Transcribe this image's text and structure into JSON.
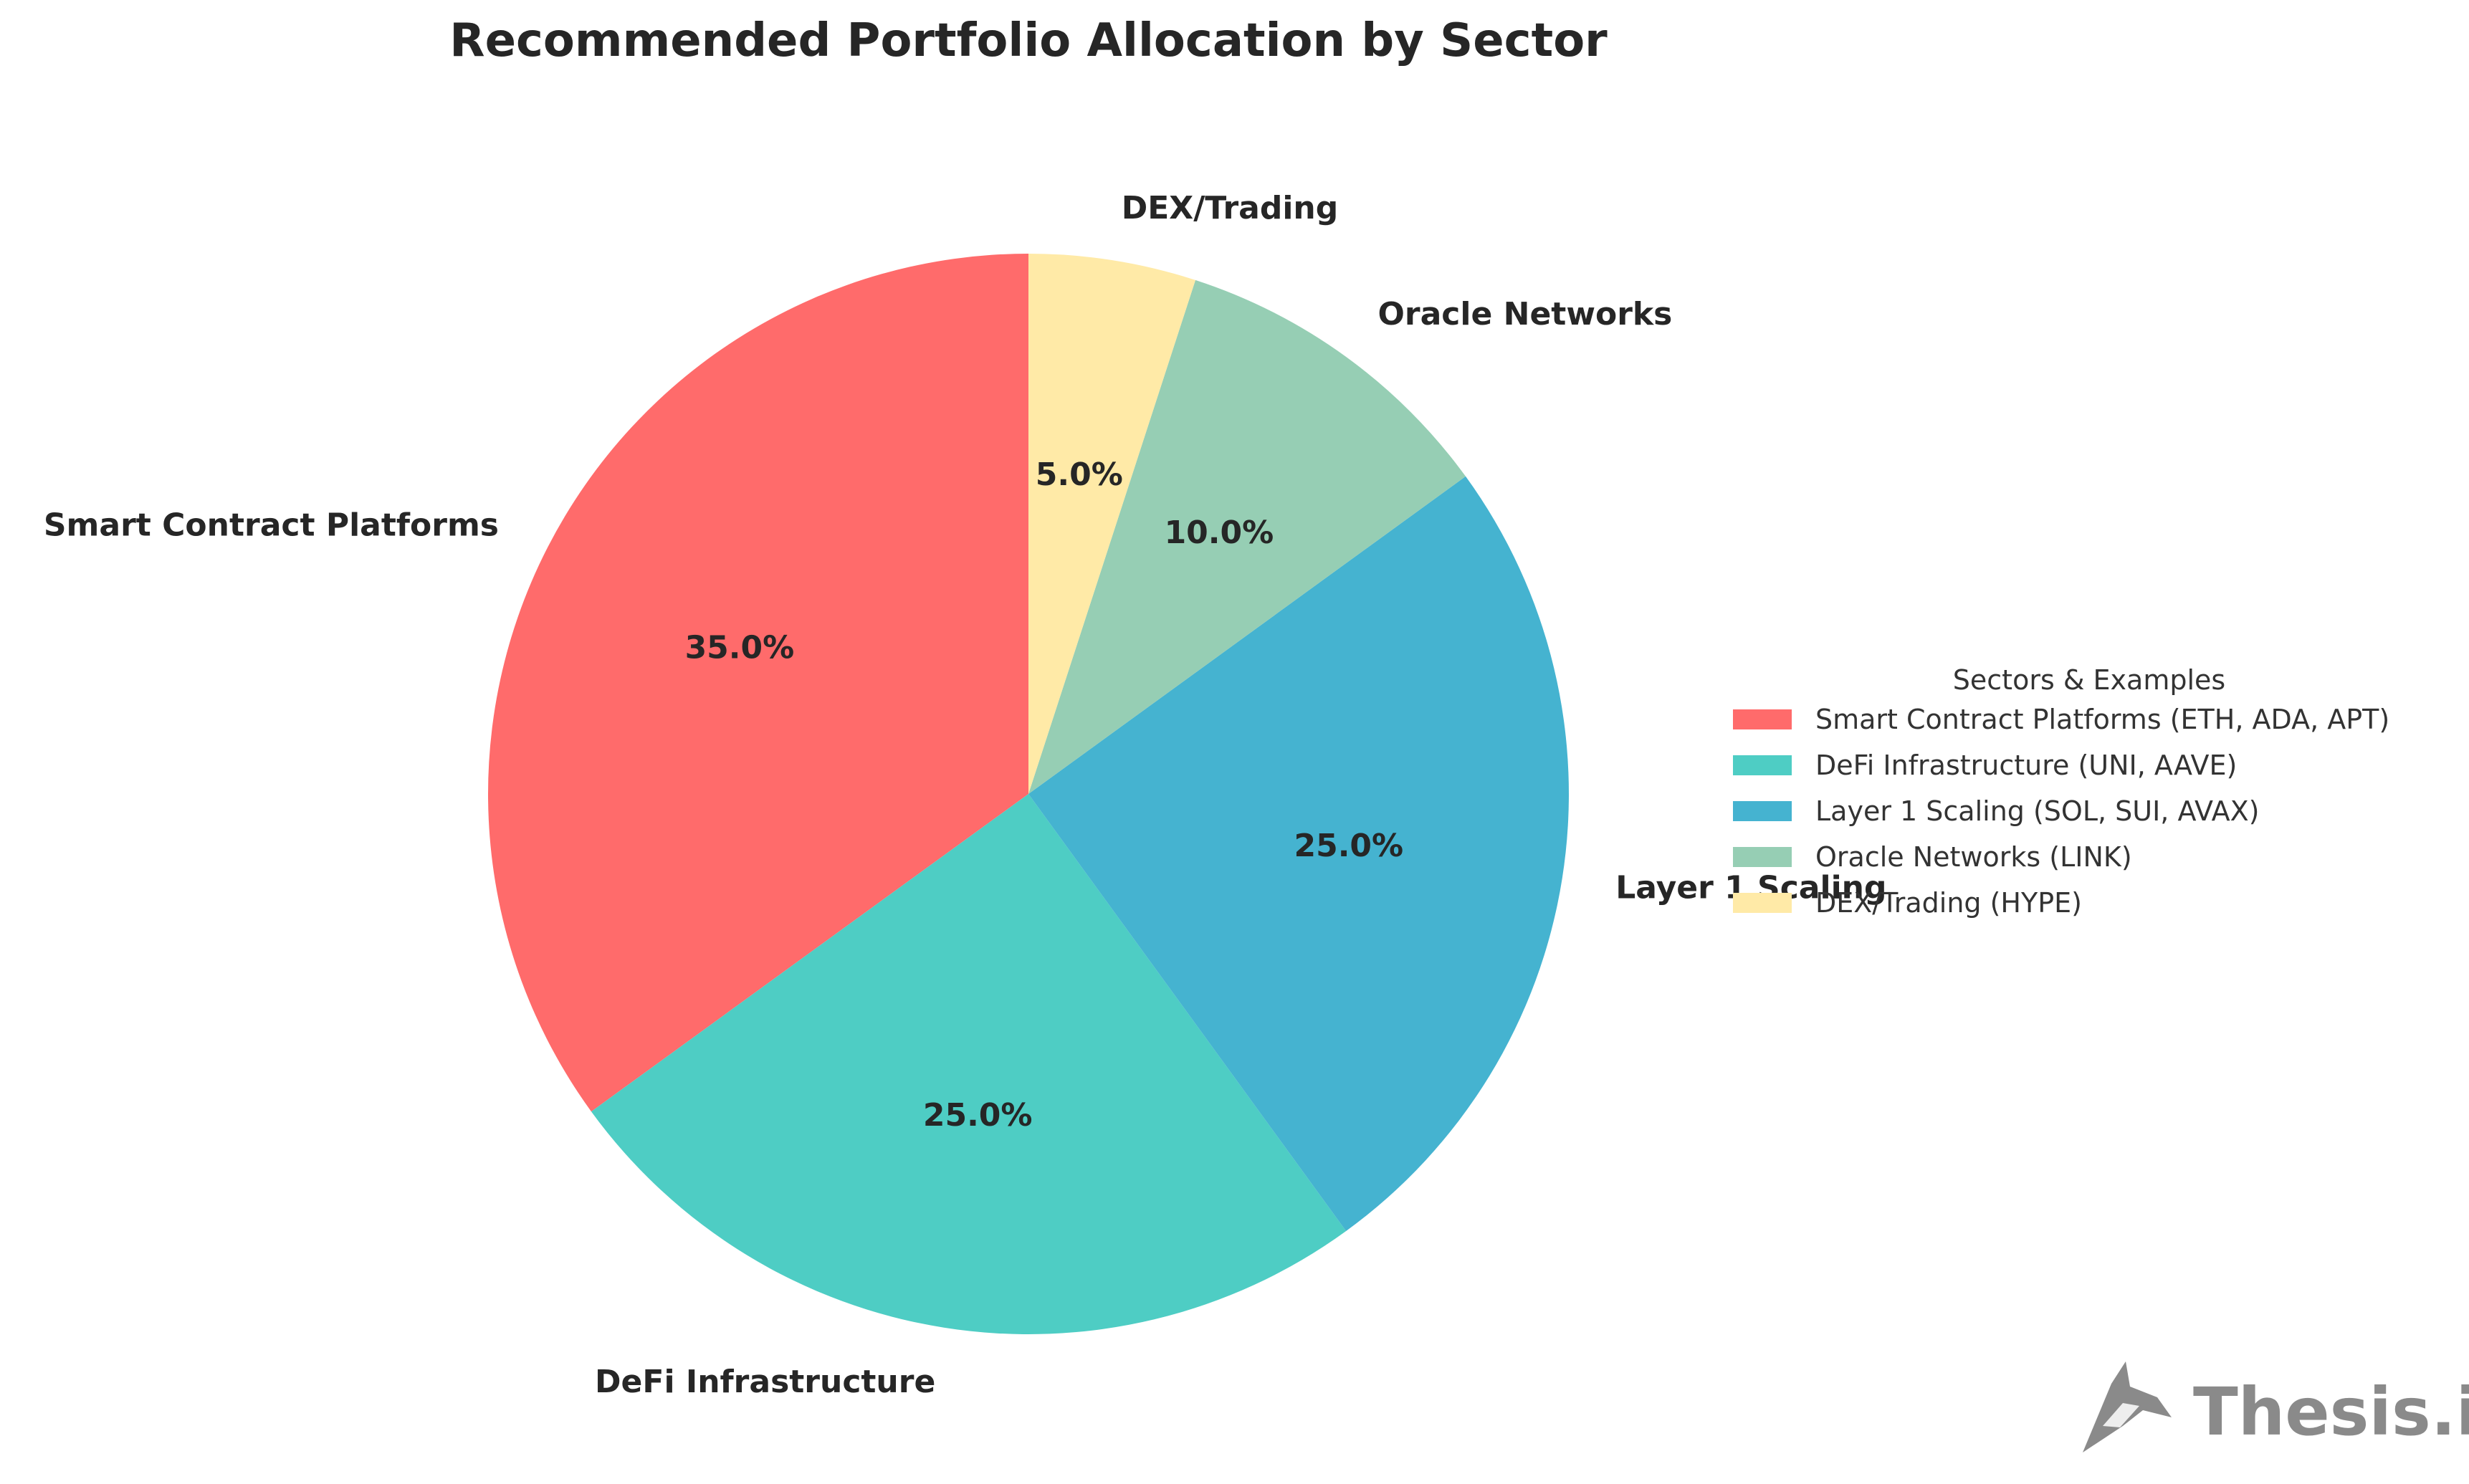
{
  "chart_data": {
    "type": "pie",
    "title": "Recommended Portfolio Allocation by Sector",
    "categories": [
      "Smart Contract Platforms",
      "DeFi Infrastructure",
      "Layer 1 Scaling",
      "Oracle Networks",
      "DEX/Trading"
    ],
    "values": [
      35.0,
      25.0,
      25.0,
      10.0,
      5.0
    ],
    "value_labels": [
      "35.0%",
      "25.0%",
      "25.0%",
      "10.0%",
      "5.0%"
    ],
    "colors": [
      "#ff6b6b",
      "#4ecdc4",
      "#45b3d0",
      "#96ceb4",
      "#ffeaa7"
    ],
    "start_angle": 90,
    "direction": "counterclockwise",
    "legend": {
      "title": "Sectors & Examples",
      "entries": [
        "Smart Contract Platforms (ETH, ADA, APT)",
        "DeFi Infrastructure (UNI, AAVE)",
        "Layer 1 Scaling (SOL, SUI, AVAX)",
        "Oracle Networks (LINK)",
        "DEX/Trading (HYPE)"
      ],
      "placement": "right"
    }
  },
  "branding": {
    "logo_icon": "fox-head-icon",
    "name": "Thesis.io"
  }
}
